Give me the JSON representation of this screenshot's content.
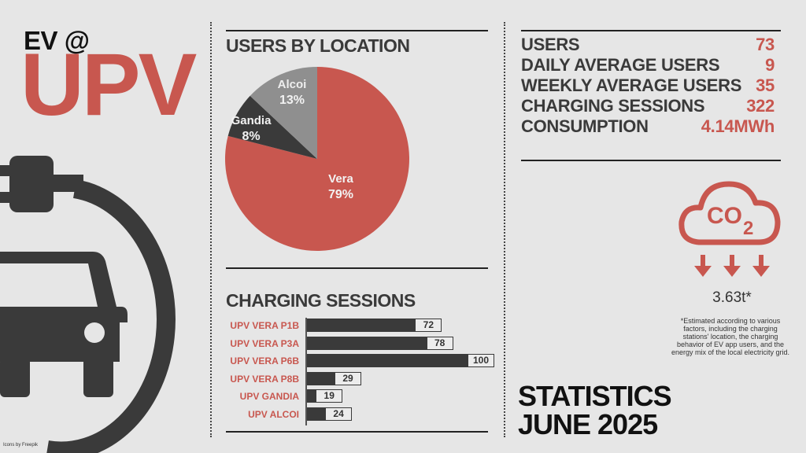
{
  "header": {
    "line1": "EV @",
    "line2": "UPV"
  },
  "pie_section": {
    "title": "USERS BY LOCATION"
  },
  "bar_section": {
    "title": "CHARGING SESSIONS"
  },
  "stats": [
    {
      "label": "USERS",
      "value": "73"
    },
    {
      "label": "DAILY AVERAGE USERS",
      "value": "9"
    },
    {
      "label": "WEEKLY AVERAGE USERS",
      "value": "35"
    },
    {
      "label": "CHARGING SESSIONS",
      "value": "322"
    },
    {
      "label": "CONSUMPTION",
      "value": "4.14MWh"
    }
  ],
  "co2": {
    "value": "3.63t*",
    "icon": "co2-cloud-icon",
    "note": "*Estimated according to various factors, including the charging stations' location, the charging behavior of EV app users, and the energy mix of the local electricity grid."
  },
  "footer": {
    "stats_line1": "STATISTICS",
    "stats_line2": "JUNE 2025",
    "credit": "Icons by Freepik"
  },
  "colors": {
    "accent": "#c8574f",
    "dark": "#3a3a3a",
    "gray": "#8f8f8f",
    "background": "#e6e6e6"
  },
  "chart_data": [
    {
      "type": "pie",
      "title": "USERS BY LOCATION",
      "slices": [
        {
          "label": "Vera",
          "value": 79,
          "display": "79%",
          "color": "#c8574f"
        },
        {
          "label": "Gandia",
          "value": 8,
          "display": "8%",
          "color": "#3a3a3a"
        },
        {
          "label": "Alcoi",
          "value": 13,
          "display": "13%",
          "color": "#8f8f8f"
        }
      ]
    },
    {
      "type": "bar",
      "orientation": "horizontal",
      "title": "CHARGING SESSIONS",
      "categories": [
        "UPV VERA P1B",
        "UPV VERA P3A",
        "UPV VERA P6B",
        "UPV VERA P8B",
        "UPV GANDIA",
        "UPV ALCOI"
      ],
      "values": [
        72,
        78,
        100,
        29,
        19,
        24
      ],
      "xlim": [
        0,
        100
      ]
    }
  ]
}
